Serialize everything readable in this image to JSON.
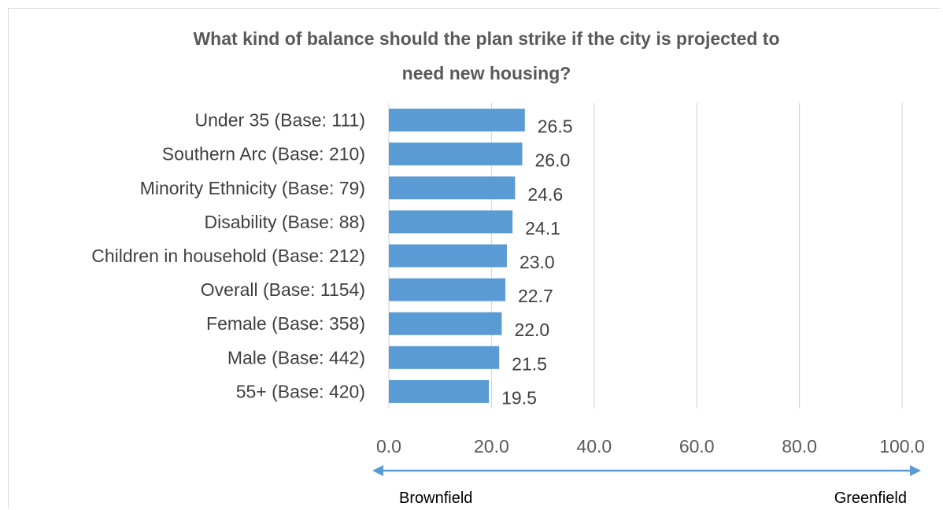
{
  "chart_data": {
    "type": "bar",
    "orientation": "horizontal",
    "title": "What kind of balance should the plan strike if the city is projected to need new housing?",
    "title_lines": [
      "What kind of balance should the plan strike if the city is projected to",
      "need new housing?"
    ],
    "categories": [
      "Under 35 (Base: 111)",
      "Southern Arc (Base: 210)",
      "Minority Ethnicity (Base: 79)",
      "Disability (Base: 88)",
      "Children in household (Base: 212)",
      "Overall (Base: 1154)",
      "Female (Base: 358)",
      "Male (Base: 442)",
      "55+ (Base: 420)"
    ],
    "values": [
      26.5,
      26.0,
      24.6,
      24.1,
      23.0,
      22.7,
      22.0,
      21.5,
      19.5
    ],
    "value_labels": [
      "26.5",
      "26.0",
      "24.6",
      "24.1",
      "23.0",
      "22.7",
      "22.0",
      "21.5",
      "19.5"
    ],
    "xlim": [
      0,
      100
    ],
    "x_ticks": [
      0,
      20,
      40,
      60,
      80,
      100
    ],
    "x_tick_labels": [
      "0.0",
      "20.0",
      "40.0",
      "60.0",
      "80.0",
      "100.0"
    ],
    "grid": "vertical",
    "legend": "none",
    "scale_labels": {
      "left": "Brownfield",
      "right": "Greenfield"
    },
    "colors": {
      "bar": "#5b9bd5",
      "grid": "#d9d9d9",
      "arrow": "#5b9bd5"
    }
  }
}
